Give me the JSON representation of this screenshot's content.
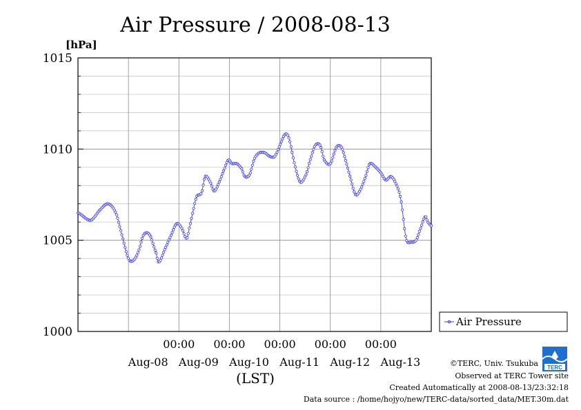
{
  "chart_data": {
    "type": "line",
    "title": "Air Pressure / 2008-08-13",
    "ylabel": "[hPa]",
    "xlabel": "(LST)",
    "ylim": [
      1000,
      1015
    ],
    "yticks": [
      "1000",
      "1005",
      "1010",
      "1015"
    ],
    "x_time_labels": [
      "00:00",
      "00:00",
      "00:00",
      "00:00",
      "00:00"
    ],
    "x_date_labels": [
      "Aug-08",
      "Aug-09",
      "Aug-10",
      "Aug-11",
      "Aug-12",
      "Aug-13"
    ],
    "xlim_days": [
      0,
      6
    ],
    "grid": true,
    "legend": "right",
    "series": [
      {
        "name": "Air Pressure",
        "color": "#3333ff",
        "points": [
          [
            0.0,
            1006.5
          ],
          [
            0.25,
            1006.1
          ],
          [
            0.45,
            1006.7
          ],
          [
            0.6,
            1007.0
          ],
          [
            0.75,
            1006.5
          ],
          [
            0.88,
            1005.2
          ],
          [
            1.0,
            1004.0
          ],
          [
            1.1,
            1003.9
          ],
          [
            1.2,
            1004.4
          ],
          [
            1.3,
            1005.3
          ],
          [
            1.42,
            1005.3
          ],
          [
            1.55,
            1004.3
          ],
          [
            1.6,
            1003.8
          ],
          [
            1.72,
            1004.5
          ],
          [
            1.85,
            1005.3
          ],
          [
            1.95,
            1005.9
          ],
          [
            2.05,
            1005.7
          ],
          [
            2.15,
            1005.1
          ],
          [
            2.2,
            1005.6
          ],
          [
            2.28,
            1006.6
          ],
          [
            2.35,
            1007.4
          ],
          [
            2.45,
            1007.6
          ],
          [
            2.52,
            1008.5
          ],
          [
            2.62,
            1008.2
          ],
          [
            2.7,
            1007.7
          ],
          [
            2.8,
            1008.2
          ],
          [
            2.9,
            1008.9
          ],
          [
            2.98,
            1009.4
          ],
          [
            3.05,
            1009.2
          ],
          [
            3.15,
            1009.2
          ],
          [
            3.25,
            1008.9
          ],
          [
            3.3,
            1008.5
          ],
          [
            3.4,
            1008.6
          ],
          [
            3.5,
            1009.5
          ],
          [
            3.6,
            1009.8
          ],
          [
            3.7,
            1009.8
          ],
          [
            3.8,
            1009.6
          ],
          [
            3.9,
            1009.6
          ],
          [
            4.0,
            1010.2
          ],
          [
            4.1,
            1010.8
          ],
          [
            4.18,
            1010.6
          ],
          [
            4.28,
            1009.3
          ],
          [
            4.4,
            1008.2
          ],
          [
            4.52,
            1008.6
          ],
          [
            4.6,
            1009.4
          ],
          [
            4.7,
            1010.2
          ],
          [
            4.8,
            1010.2
          ],
          [
            4.88,
            1009.4
          ],
          [
            5.0,
            1009.2
          ],
          [
            5.12,
            1010.1
          ],
          [
            5.22,
            1010.1
          ],
          [
            5.3,
            1009.4
          ],
          [
            5.4,
            1008.4
          ],
          [
            5.5,
            1007.5
          ],
          [
            5.6,
            1007.8
          ],
          [
            5.7,
            1008.5
          ],
          [
            5.78,
            1009.2
          ],
          [
            5.9,
            1009.0
          ],
          [
            6.0,
            1008.7
          ],
          [
            6.1,
            1008.3
          ],
          [
            6.2,
            1008.5
          ],
          [
            6.3,
            1008.1
          ],
          [
            6.4,
            1007.2
          ],
          [
            6.5,
            1005.1
          ],
          [
            6.6,
            1004.9
          ],
          [
            6.7,
            1005.0
          ],
          [
            6.78,
            1005.6
          ],
          [
            6.88,
            1006.3
          ],
          [
            6.93,
            1006.0
          ],
          [
            7.0,
            1005.8
          ]
        ]
      }
    ]
  },
  "legend": {
    "label": "Air Pressure"
  },
  "footer": {
    "copyright": "©TERC, Univ. Tsukuba",
    "observed": "Observed at TERC Tower site",
    "created": "Created Automatically at 2008-08-13/23:32:18",
    "source": "Data source : /home/hojyo/new/TERC-data/sorted_data/MET.30m.dat"
  },
  "logo": {
    "text": "TERC",
    "color": "#1f6fd1"
  }
}
